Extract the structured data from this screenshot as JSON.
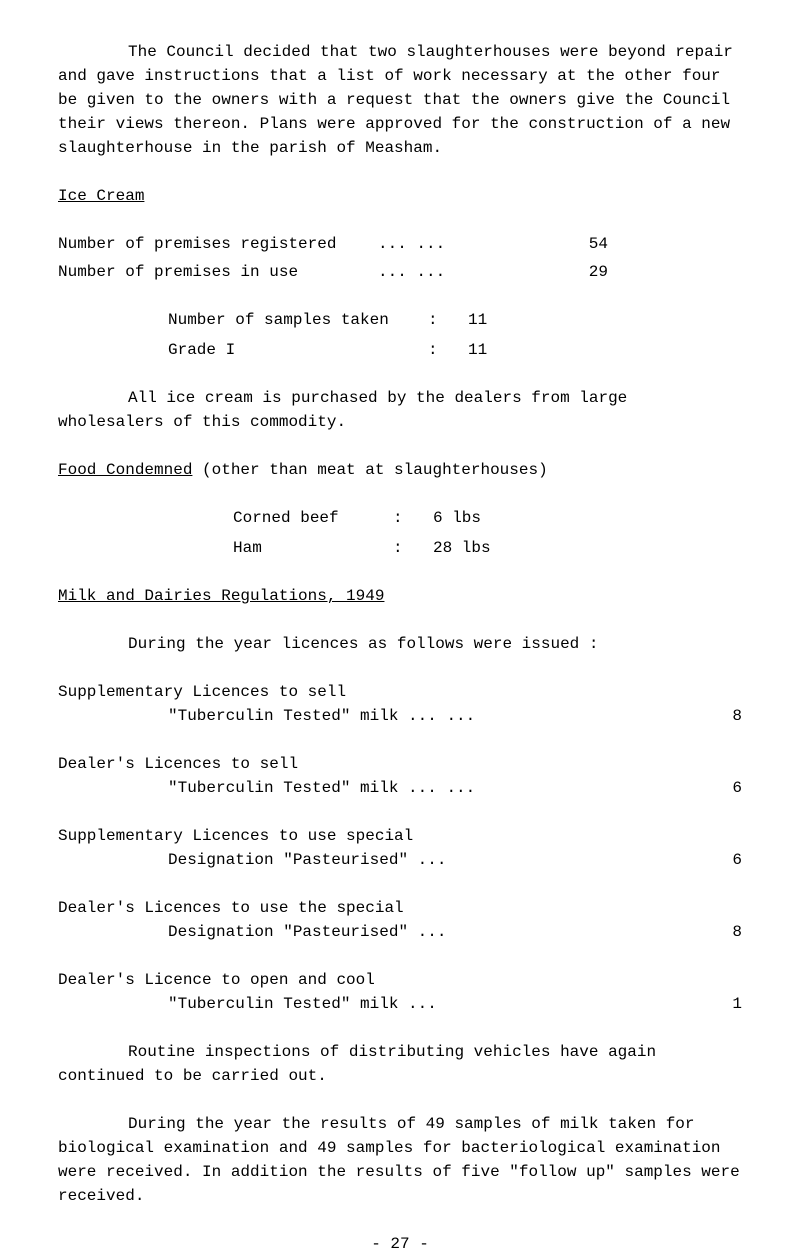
{
  "intro": "The Council decided that two slaughterhouses were beyond repair and gave instructions that a list of work necessary at the other four be given to the owners with a request that the owners give the Council their views thereon.  Plans were approved for the construction of a new slaughterhouse in the parish of Measham.",
  "iceCream": {
    "heading": "Ice Cream",
    "rows": [
      {
        "label": "Number of premises registered",
        "dots": "...     ...",
        "value": "54"
      },
      {
        "label": "Number of premises in use",
        "dots": "...     ...",
        "value": "29"
      }
    ],
    "samples": [
      {
        "label": "Number of samples taken",
        "colon": ":",
        "value": "11"
      },
      {
        "label": "Grade I",
        "colon": ":",
        "value": "11"
      }
    ],
    "para": "All ice cream is purchased by the dealers from large wholesalers of this commodity."
  },
  "food": {
    "heading": "Food Condemned",
    "headingTail": " (other than meat at slaughterhouses)",
    "rows": [
      {
        "label": "Corned beef",
        "colon": ":",
        "value": "6 lbs"
      },
      {
        "label": "Ham",
        "colon": ":",
        "value": "28 lbs"
      }
    ]
  },
  "milk": {
    "heading": "Milk and Dairies Regulations, 1949",
    "intro": "During the year licences as follows were issued :",
    "licences": [
      {
        "l1": "Supplementary Licences to sell",
        "l2": "\"Tuberculin Tested\" milk    ...   ...",
        "value": "8"
      },
      {
        "l1": "Dealer's Licences to sell",
        "l2": "\"Tuberculin Tested\" milk    ...   ...",
        "value": "6"
      },
      {
        "l1": "Supplementary Licences to use special",
        "l2": "Designation \"Pasteurised\"     ...",
        "value": "6"
      },
      {
        "l1": "Dealer's Licences to use the special",
        "l2": "Designation \"Pasteurised\"     ...",
        "value": "8"
      },
      {
        "l1": "Dealer's Licence to open and cool",
        "l2": "\"Tuberculin Tested\" milk       ...",
        "value": "1"
      }
    ],
    "para1": "Routine inspections of distributing vehicles have again continued to be carried out.",
    "para2": "During the year the results of 49 samples of milk taken for biological examination and 49 samples for bacteriological examination were received.  In addition the results of five \"follow up\" samples were received."
  },
  "pageNum": "- 27 -"
}
